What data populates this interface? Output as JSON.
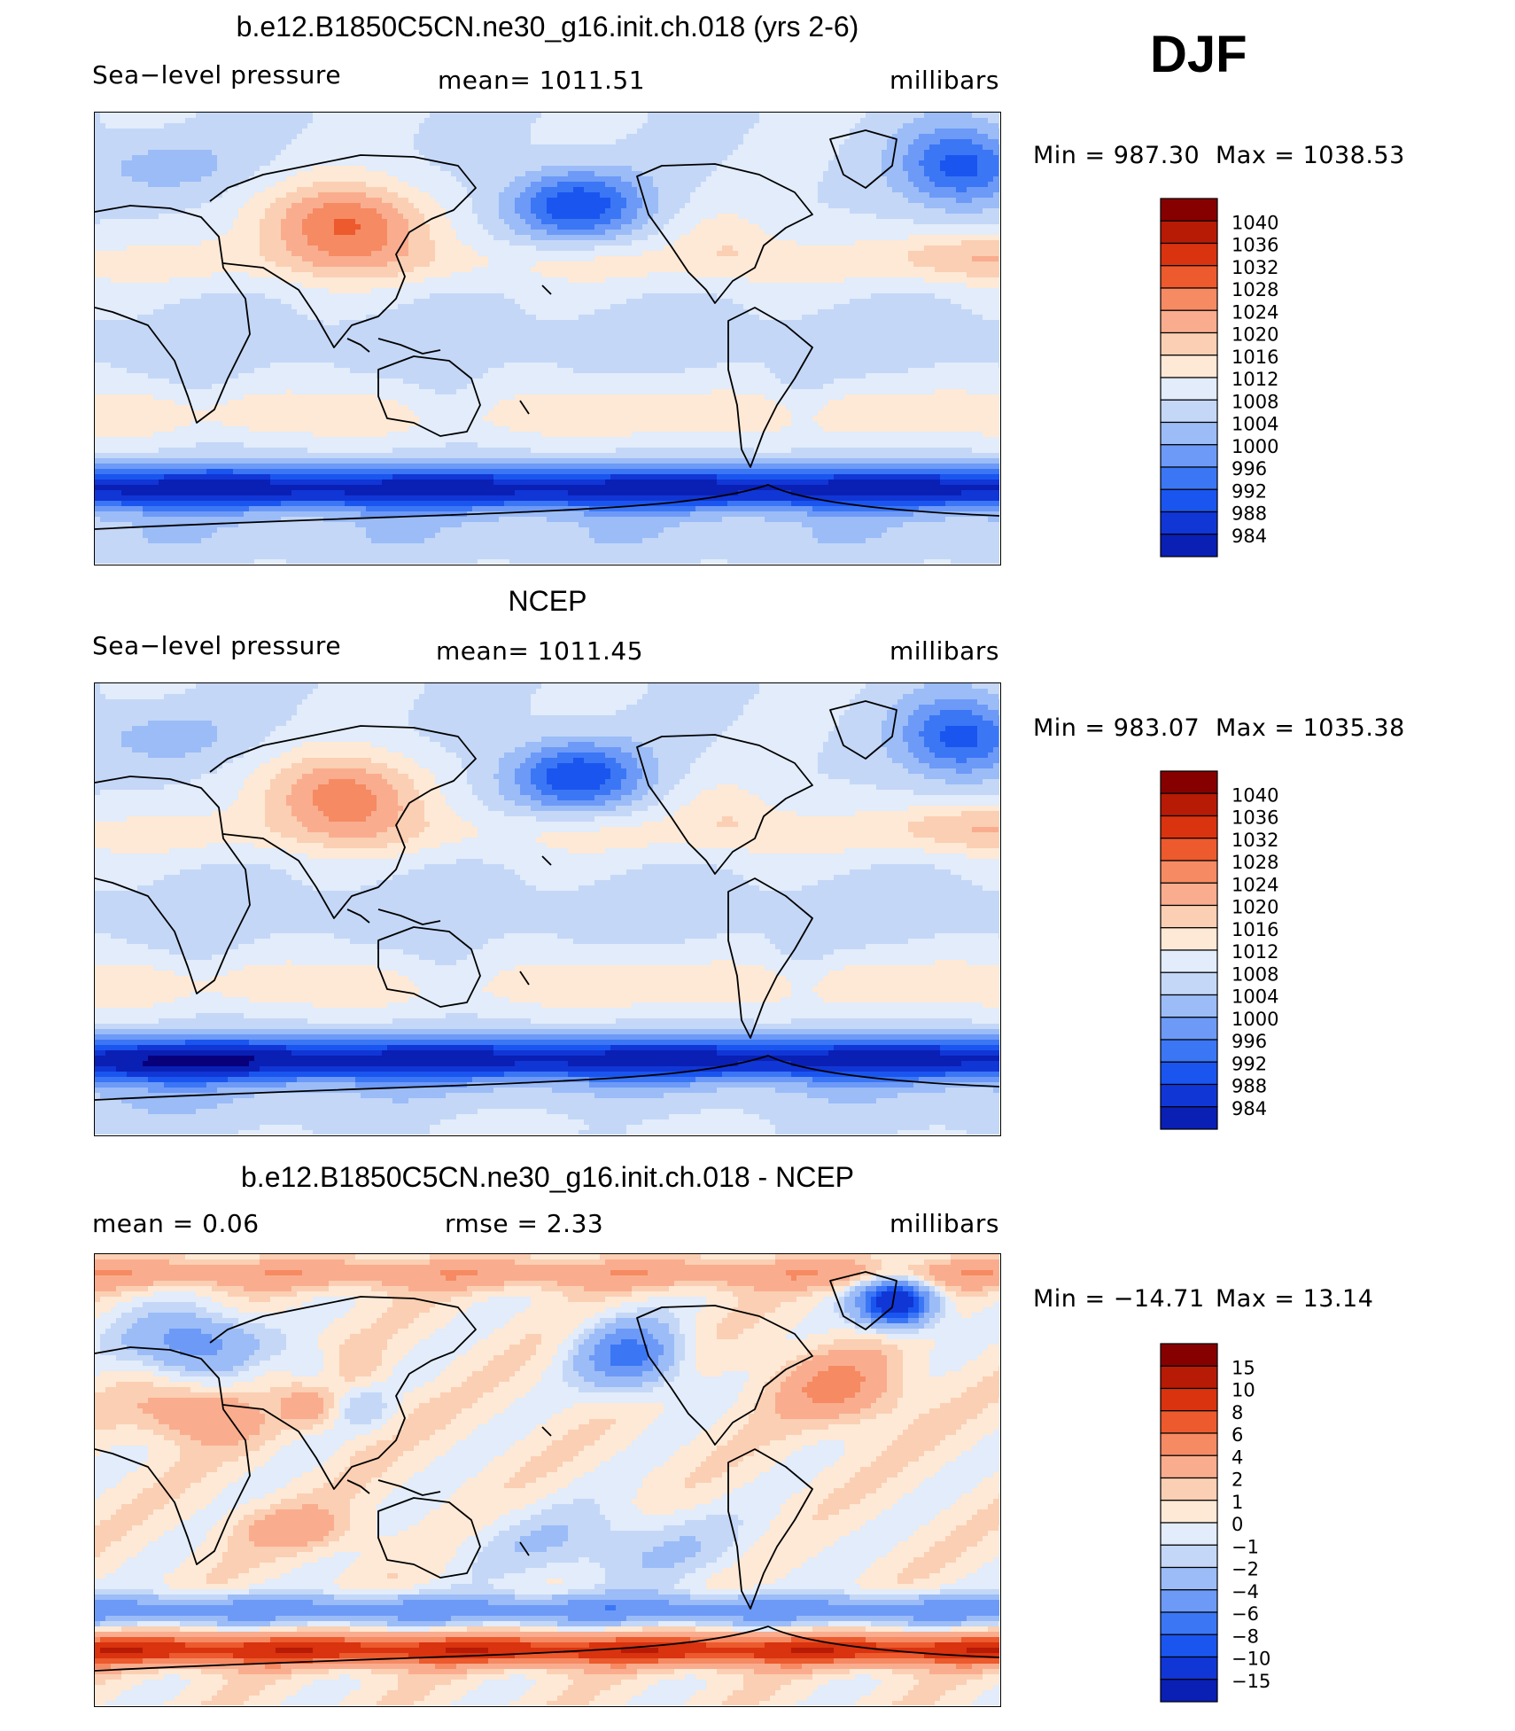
{
  "season": "DJF",
  "palette_colors": [
    "#08007a",
    "#0a1fb4",
    "#1136d6",
    "#1a55ef",
    "#3b76f5",
    "#6d9af7",
    "#9bbcf7",
    "#c4d7f7",
    "#e2ecfa",
    "#fde9d6",
    "#fbcfb3",
    "#f9ad8e",
    "#f68a63",
    "#ec5a2d",
    "#d9330f",
    "#b71b06",
    "#870000"
  ],
  "chart_data": [
    {
      "type": "heatmap",
      "title": "b.e12.B1850C5CN.ne30_g16.init.ch.018 (yrs 2-6)",
      "left_label": "Sea−level pressure",
      "center_label": "mean=  1011.51",
      "right_label": "millibars",
      "min_text": "Min  =  987.30",
      "max_text": "Max  =  1038.53",
      "min": 987.3,
      "max": 1038.53,
      "mean": 1011.51,
      "units": "millibars",
      "levels": [
        "1040",
        "1036",
        "1032",
        "1028",
        "1024",
        "1020",
        "1016",
        "1012",
        "1008",
        "1004",
        "1000",
        "996",
        "992",
        "988",
        "984"
      ]
    },
    {
      "type": "heatmap",
      "title": "NCEP",
      "left_label": "Sea−level pressure",
      "center_label": "mean=  1011.45",
      "right_label": "millibars",
      "min_text": "Min  =  983.07",
      "max_text": "Max  =  1035.38",
      "min": 983.07,
      "max": 1035.38,
      "mean": 1011.45,
      "units": "millibars",
      "levels": [
        "1040",
        "1036",
        "1032",
        "1028",
        "1024",
        "1020",
        "1016",
        "1012",
        "1008",
        "1004",
        "1000",
        "996",
        "992",
        "988",
        "984"
      ]
    },
    {
      "type": "heatmap",
      "title": "b.e12.B1850C5CN.ne30_g16.init.ch.018 - NCEP",
      "left_label": "mean  =     0.06",
      "center_label": "rmse  =     2.33",
      "right_label": "millibars",
      "min_text": "Min  =  −14.71",
      "max_text": "Max  =    13.14",
      "min": -14.71,
      "max": 13.14,
      "mean": 0.06,
      "rmse": 2.33,
      "units": "millibars",
      "levels": [
        "15",
        "10",
        "8",
        "6",
        "4",
        "2",
        "1",
        "0",
        "−1",
        "−2",
        "−4",
        "−6",
        "−8",
        "−10",
        "−15"
      ]
    }
  ]
}
